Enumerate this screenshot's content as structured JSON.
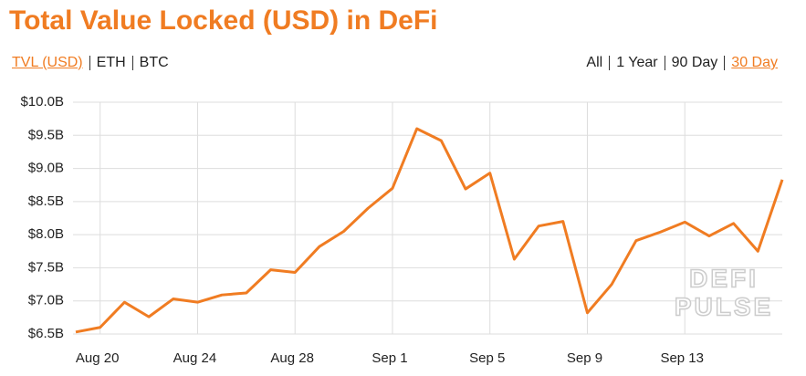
{
  "header": {
    "title": "Total Value Locked (USD) in DeFi",
    "units": [
      "TVL (USD)",
      "ETH",
      "BTC"
    ],
    "active_unit": 0,
    "ranges": [
      "All",
      "1 Year",
      "90 Day",
      "30 Day"
    ],
    "active_range": 3
  },
  "watermark": [
    "DEFI",
    "PULSE"
  ],
  "chart_data": {
    "type": "line",
    "categories": [
      null,
      "Aug 20",
      null,
      null,
      null,
      "Aug 24",
      null,
      null,
      null,
      "Aug 28",
      null,
      null,
      null,
      "Sep 1",
      null,
      null,
      null,
      "Sep 5",
      null,
      null,
      null,
      "Sep 9",
      null,
      null,
      null,
      "Sep 13",
      null,
      null,
      null,
      null
    ],
    "series": [
      {
        "name": "TVL (USD)",
        "color": "#f07c22",
        "values": [
          6.53,
          6.6,
          6.98,
          6.76,
          7.03,
          6.98,
          7.09,
          7.12,
          7.47,
          7.43,
          7.82,
          8.05,
          8.4,
          8.7,
          9.6,
          9.42,
          8.69,
          8.93,
          7.63,
          8.13,
          8.2,
          6.82,
          7.25,
          7.91,
          8.04,
          8.19,
          7.98,
          8.17,
          7.75,
          8.83
        ]
      }
    ],
    "ylim": [
      6.5,
      10
    ],
    "yticks": [
      {
        "value": 6.5,
        "label": "$6.5B"
      },
      {
        "value": 7,
        "label": "$7.0B"
      },
      {
        "value": 7.5,
        "label": "$7.5B"
      },
      {
        "value": 8,
        "label": "$8.0B"
      },
      {
        "value": 8.5,
        "label": "$8.5B"
      },
      {
        "value": 9,
        "label": "$9.0B"
      },
      {
        "value": 9.5,
        "label": "$9.5B"
      },
      {
        "value": 10,
        "label": "$10.0B"
      }
    ],
    "grid": true
  }
}
